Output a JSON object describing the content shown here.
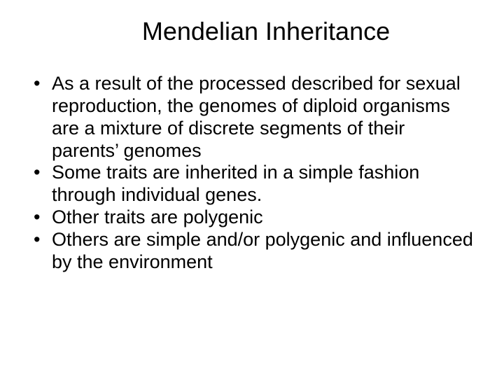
{
  "slide": {
    "title": "Mendelian Inheritance",
    "bullets": [
      "As a result of the processed described for sexual reproduction, the genomes of diploid organisms are a mixture of discrete segments of their parents’ genomes",
      "Some traits are inherited in a simple fashion through individual genes.",
      "Other traits are polygenic",
      "Others are simple and/or polygenic and influenced by the environment"
    ],
    "title_fontsize": 36,
    "body_fontsize": 27,
    "background_color": "#ffffff",
    "text_color": "#000000",
    "font_family": "Arial"
  }
}
